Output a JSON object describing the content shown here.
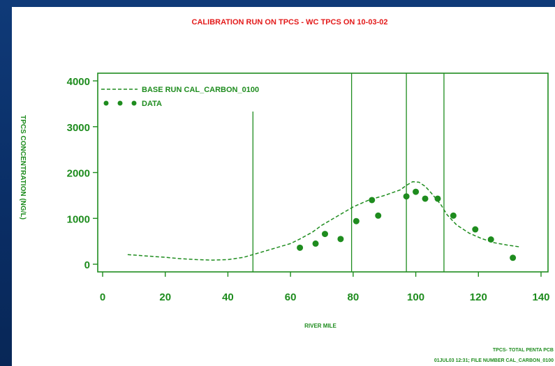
{
  "chart_data": {
    "type": "line",
    "title": "CALIBRATION RUN ON TPCS - WC TPCS ON 10-03-02",
    "xlabel": "RIVER MILE",
    "ylabel": "TPCS CONCENTRATION (NG/L)",
    "xlim": [
      0,
      140
    ],
    "ylim": [
      0,
      4000
    ],
    "x_ticks": [
      0,
      20,
      40,
      60,
      80,
      100,
      120,
      140
    ],
    "y_ticks": [
      0,
      1000,
      2000,
      3000,
      4000
    ],
    "grid": false,
    "legend_position": "top-left",
    "vertical_lines": [
      48,
      79.5,
      97,
      109
    ],
    "series": [
      {
        "name": "BASE RUN CAL_CARBON_0100",
        "style": "dashed",
        "color": "#1e8c1e",
        "x": [
          8,
          15,
          20,
          25,
          30,
          35,
          40,
          45,
          50,
          55,
          60,
          63,
          67,
          70,
          75,
          80,
          85,
          90,
          95,
          97,
          99,
          101,
          103,
          105,
          108,
          110,
          113,
          117,
          121,
          125,
          129,
          133
        ],
        "y": [
          210,
          175,
          150,
          120,
          100,
          90,
          100,
          150,
          250,
          350,
          450,
          550,
          700,
          850,
          1050,
          1250,
          1400,
          1500,
          1620,
          1720,
          1800,
          1790,
          1700,
          1550,
          1300,
          1080,
          860,
          680,
          560,
          470,
          420,
          380
        ]
      },
      {
        "name": "DATA",
        "style": "markers",
        "color": "#1e8c1e",
        "x": [
          63,
          68,
          71,
          76,
          81,
          86,
          88,
          97,
          100,
          103,
          107,
          112,
          119,
          124,
          131
        ],
        "y": [
          360,
          450,
          660,
          550,
          940,
          1400,
          1060,
          1480,
          1580,
          1430,
          1430,
          1060,
          760,
          540,
          140
        ]
      }
    ]
  },
  "footer": {
    "line1": "TPCS- TOTAL PENTA PCB",
    "line2": "01JUL03 12:31; FILE NUMBER CAL_CARBON_0100"
  }
}
